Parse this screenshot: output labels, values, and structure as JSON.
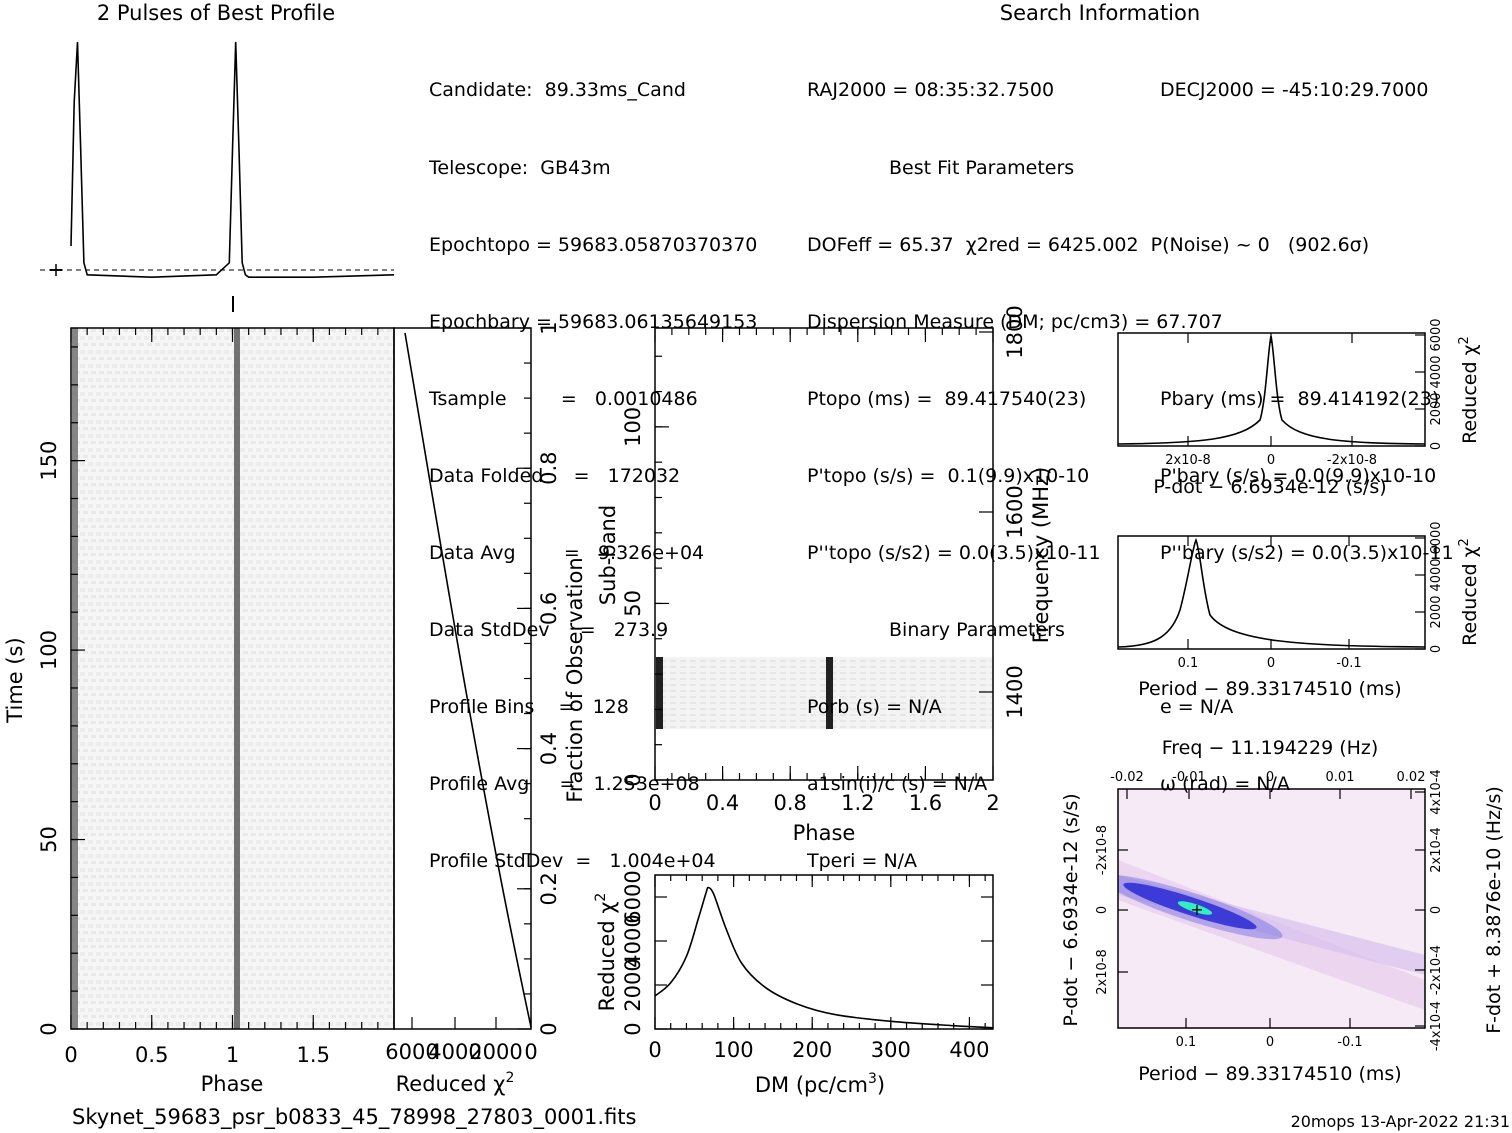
{
  "header": {
    "profile_title": "2 Pulses of Best Profile",
    "search_title": "Search Information",
    "filename": "Skynet_59683_psr_b0833_45_78998_27803_0001.fits",
    "footer_right": "20mops 13-Apr-2022 21:31"
  },
  "info_col1": [
    "Candidate:  89.33ms_Cand",
    "Telescope:  GB43m",
    "Epochtopo = 59683.05870370370",
    "Epochbary = 59683.06135649153",
    "Tsample         =   0.0010486",
    "Data Folded     =   172032",
    "Data Avg        =   9.326e+04",
    "Data StdDev     =   273.9",
    "Profile Bins    =   128",
    "Profile Avg     =   1.253e+08",
    "Profile StdDev  =   1.004e+04"
  ],
  "info_col2": [
    "RAJ2000 = 08:35:32.7500",
    "Best Fit Parameters",
    "DOFeff = 65.37  χ2red = 6425.002  P(Noise) ~ 0   (902.6σ)",
    "Dispersion Measure (DM; pc/cm3) = 67.707",
    "Ptopo (ms) =  89.417540(23)",
    "P'topo (s/s) =  0.1(9.9)x10-10",
    "P''topo (s/s2) = 0.0(3.5)x10-11",
    "Binary Parameters",
    "Porb (s) = N/A",
    "a1sin(i)/c (s) = N/A",
    "Tperi = N/A"
  ],
  "info_col3": [
    "DECJ2000 = -45:10:29.7000",
    "",
    "",
    "",
    "Pbary (ms) =  89.414192(23)",
    "P'bary (s/s) = 0.0(9.9)x10-10",
    "P''bary (s/s2) = 0.0(3.5)x10-11",
    "",
    "e = N/A",
    "ω (rad) = N/A",
    ""
  ],
  "colors": {
    "ink": "#000000",
    "grey_trace": "#555555",
    "chi_blue": "#1010c0",
    "chi_cyan": "#20e0c0",
    "chi_bg": "#f4e8f4"
  },
  "chart_data": [
    {
      "id": "profile",
      "type": "line",
      "title": "2 Pulses of Best Profile",
      "x": [
        0,
        0.02,
        0.04,
        0.06,
        0.08,
        0.1,
        0.5,
        0.9,
        0.98,
        1.0,
        1.02,
        1.04,
        1.06,
        1.08,
        1.1,
        1.5,
        2.0
      ],
      "y": [
        0.15,
        0.75,
        1.0,
        0.55,
        0.08,
        0.03,
        0.02,
        0.03,
        0.08,
        0.55,
        1.0,
        0.55,
        0.08,
        0.03,
        0.02,
        0.02,
        0.03
      ],
      "xlim": [
        0,
        2
      ]
    },
    {
      "id": "time-phase",
      "type": "heatmap",
      "xlabel": "Phase",
      "ylabel": "Time (s)",
      "xticks": [
        "0",
        "0.5",
        "1",
        "1.5"
      ],
      "yticks": [
        "0",
        "50",
        "100",
        "150"
      ],
      "xlim": [
        0,
        2
      ],
      "ylim": [
        0,
        185
      ]
    },
    {
      "id": "chi-vs-time",
      "type": "line",
      "xlabel": "Reduced χ2",
      "xticks": [
        "6000",
        "4000",
        "2000",
        "0"
      ],
      "ylabel": "Fraction of Observation",
      "yticks": [
        "0",
        "0.2",
        "0.4",
        "0.6",
        "0.8",
        "1"
      ],
      "x": [
        0,
        6000
      ],
      "y": [
        0,
        1
      ]
    },
    {
      "id": "subband-phase",
      "type": "heatmap",
      "xlabel": "Phase",
      "ylabel": "Sub-band",
      "y2label": "Frequency (MHz)",
      "xticks": [
        "0",
        "0.4",
        "0.8",
        "1.2",
        "1.6",
        "2"
      ],
      "yticks": [
        "0",
        "50",
        "100"
      ],
      "y2ticks": [
        "1400",
        "1600",
        "1800"
      ],
      "xlim": [
        0,
        2
      ],
      "ylim": [
        0,
        128
      ]
    },
    {
      "id": "dm-curve",
      "type": "line",
      "xlabel": "DM (pc/cm3)",
      "ylabel": "Reduced χ2",
      "xticks": [
        "0",
        "100",
        "200",
        "300",
        "400"
      ],
      "yticks": [
        "0",
        "2000",
        "4000",
        "6000"
      ],
      "x": [
        0,
        20,
        40,
        55,
        65,
        68,
        75,
        90,
        110,
        140,
        180,
        230,
        300,
        380,
        430
      ],
      "y": [
        1500,
        2100,
        3300,
        5000,
        6200,
        6425,
        6100,
        4600,
        3000,
        1900,
        1150,
        650,
        350,
        150,
        60
      ],
      "xlim": [
        0,
        430
      ],
      "ylim": [
        0,
        7000
      ]
    },
    {
      "id": "pdot-curve",
      "type": "line",
      "xlabel": "P-dot − 6.6934e-12 (s/s)",
      "ylabel": "Reduced χ2",
      "xticks": [
        "2x10-8",
        "0",
        "-2x10-8"
      ],
      "yticks": [
        "0",
        "2000",
        "4000",
        "6000"
      ]
    },
    {
      "id": "period-curve",
      "type": "line",
      "xlabel": "Period − 89.33174510 (ms)",
      "ylabel": "Reduced χ2",
      "xticks": [
        "0.1",
        "0",
        "-0.1"
      ],
      "yticks": [
        "0",
        "2000",
        "4000",
        "6000"
      ]
    },
    {
      "id": "pp-dot-plane",
      "type": "heatmap",
      "title": "Freq − 11.194229 (Hz)",
      "xlabel": "Period − 89.33174510 (ms)",
      "ylabel": "P-dot − 6.6934e-12 (s/s)",
      "y2label": "F-dot + 8.3876e-10 (Hz/s)",
      "xticks": [
        "0.1",
        "0",
        "-0.1"
      ],
      "x2ticks": [
        "-0.02",
        "-0.01",
        "0",
        "0.01",
        "0.02"
      ],
      "yticks": [
        "-2x10-8",
        "0",
        "2x10-8"
      ],
      "y2ticks": [
        "4x10-4",
        "2x10-4",
        "0",
        "-2x10-4",
        "-4x10-4"
      ]
    }
  ]
}
